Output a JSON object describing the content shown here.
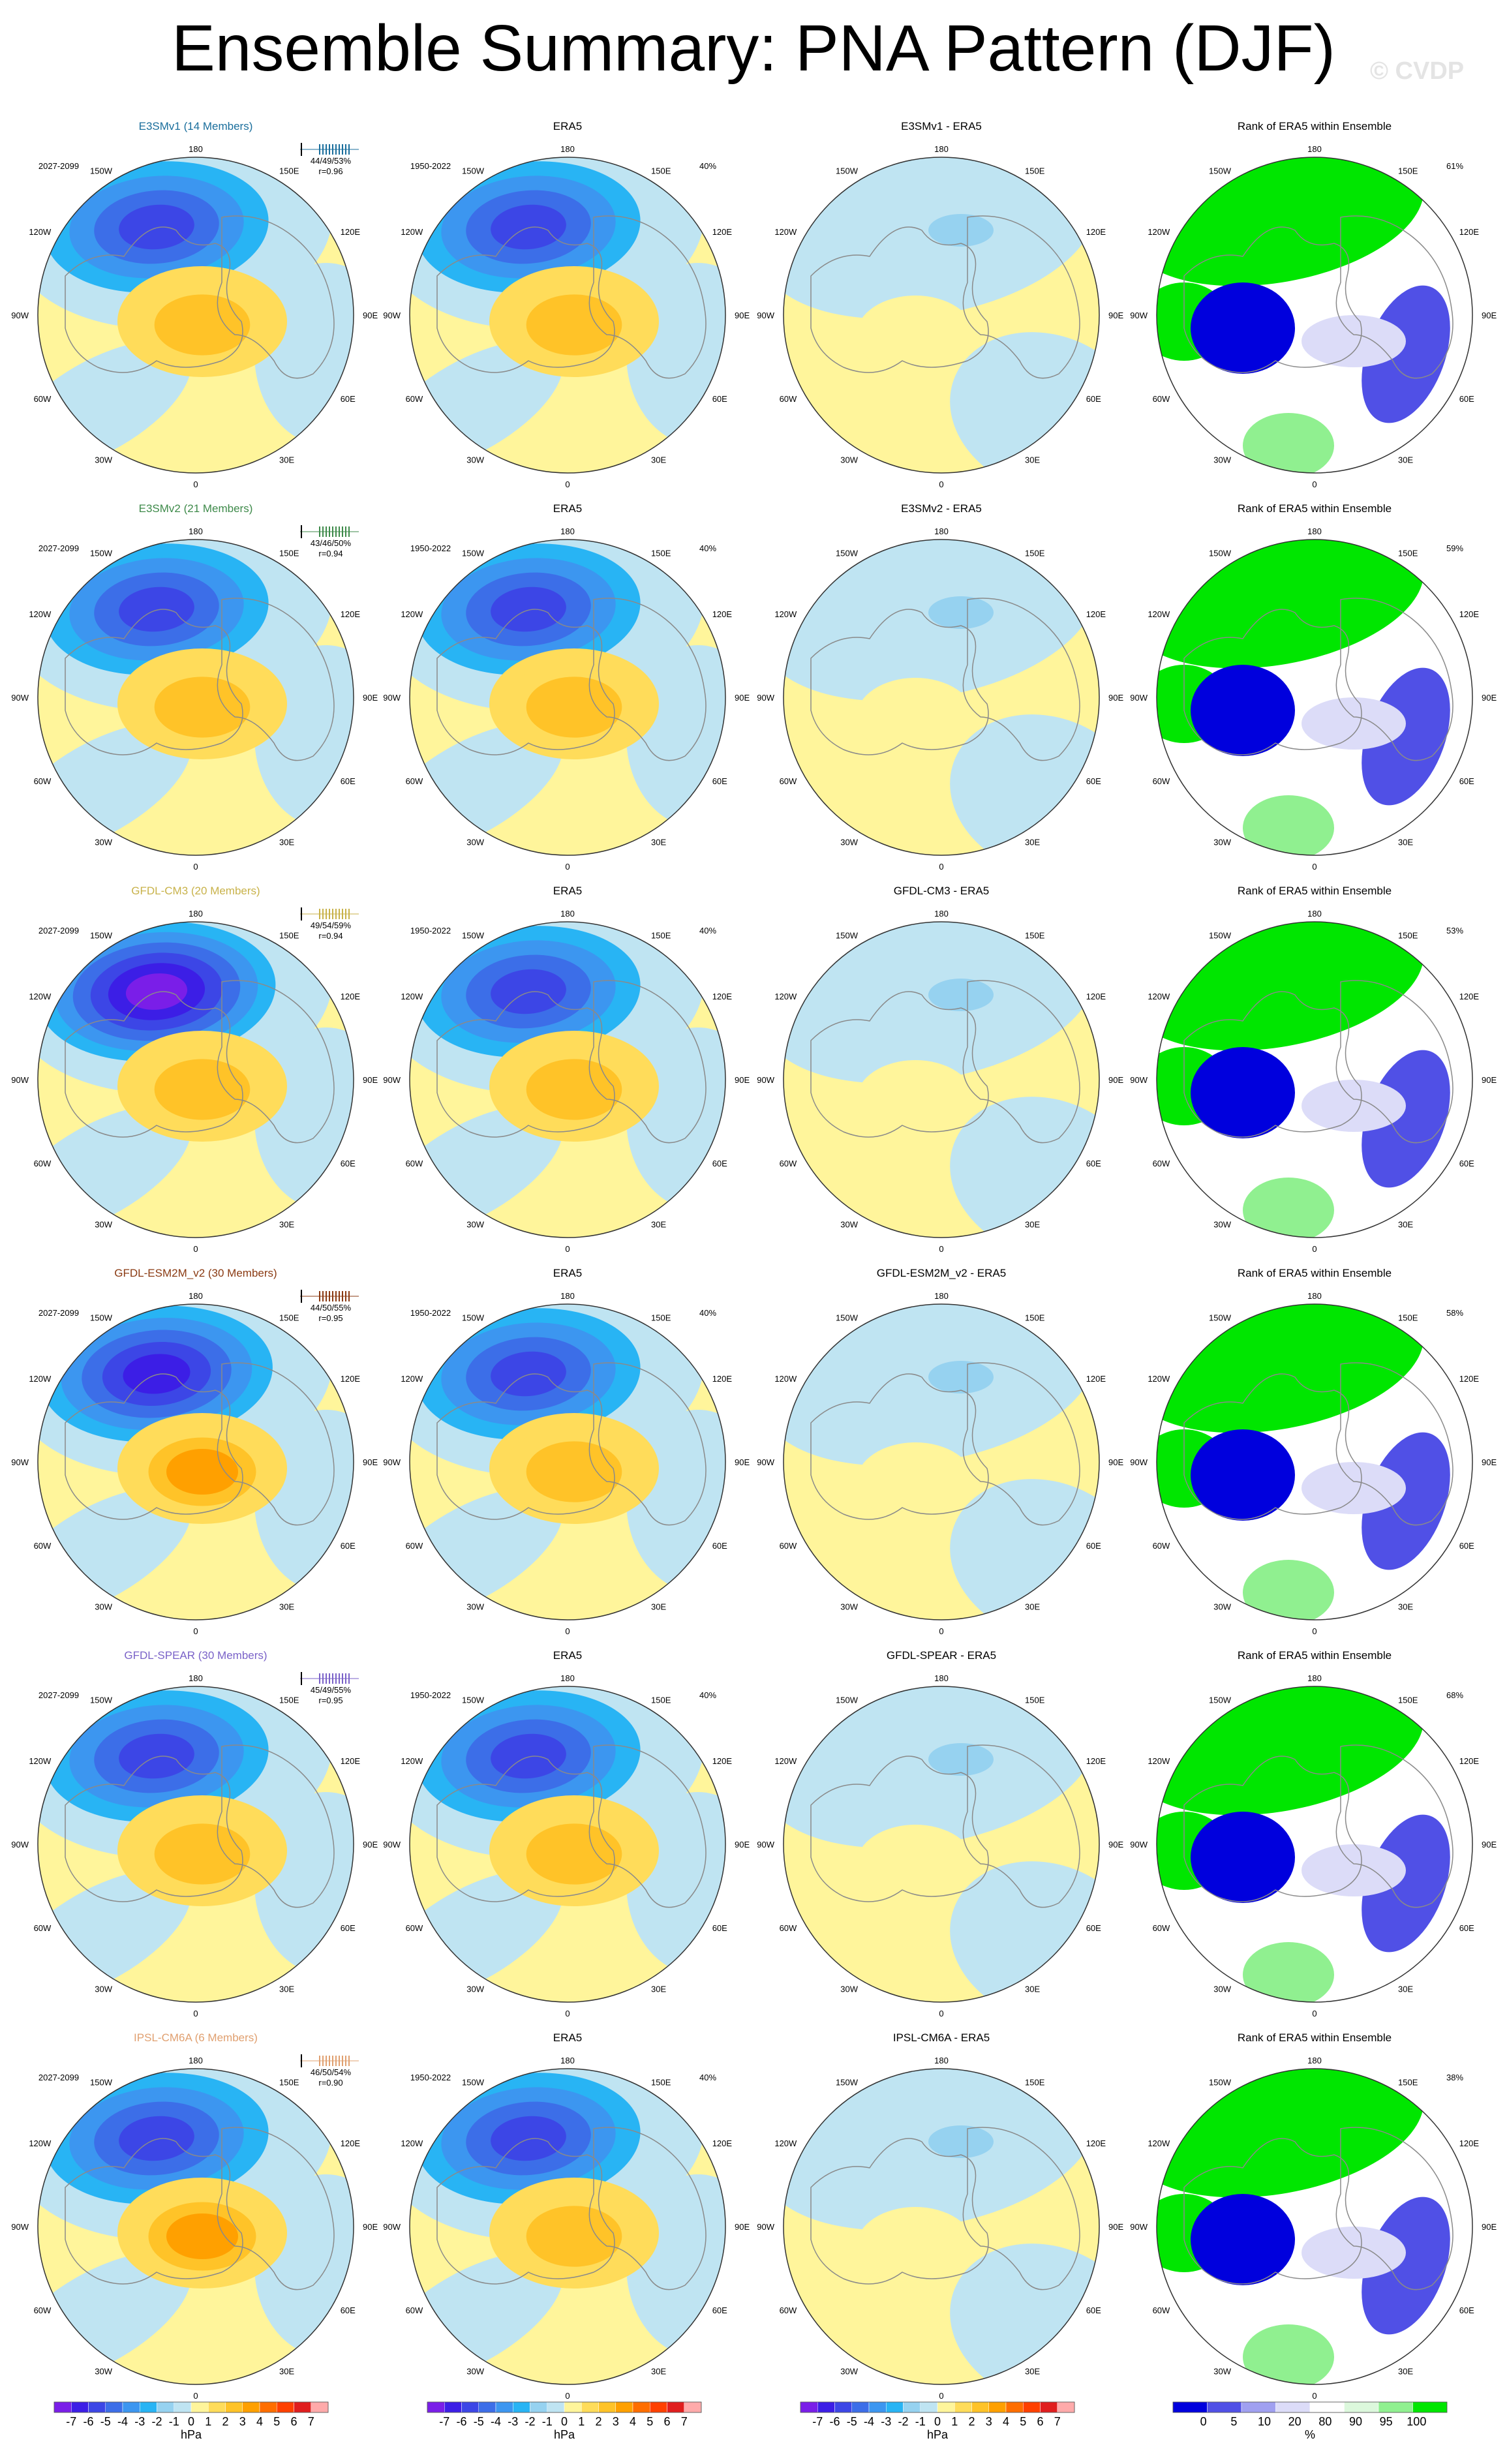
{
  "title": "Ensemble Summary: PNA Pattern (DJF)",
  "watermark": "© CVDP",
  "chart_data": {
    "type": "polar_map_panels",
    "rows": [
      {
        "model": "E3SMv1 (14 Members)",
        "model_color": "#1a6e9c",
        "period": "2027-2099",
        "ens_stats": "44/49/53%",
        "r": "r=0.96",
        "obs_title": "ERA5",
        "obs_period": "1950-2022",
        "obs_pct": "40%",
        "diff_title": "E3SMv1 - ERA5",
        "rank_title": "Rank of ERA5 within Ensemble",
        "rank_pct": "61%",
        "mean_low": -4.5,
        "mean_high": 2.5
      },
      {
        "model": "E3SMv2 (21 Members)",
        "model_color": "#3e8a4a",
        "period": "2027-2099",
        "ens_stats": "43/46/50%",
        "r": "r=0.94",
        "obs_title": "ERA5",
        "obs_period": "1950-2022",
        "obs_pct": "40%",
        "diff_title": "E3SMv2 - ERA5",
        "rank_title": "Rank of ERA5 within Ensemble",
        "rank_pct": "59%",
        "mean_low": -4.0,
        "mean_high": 2.0
      },
      {
        "model": "GFDL-CM3 (20 Members)",
        "model_color": "#c8b24a",
        "period": "2027-2099",
        "ens_stats": "49/54/59%",
        "r": "r=0.94",
        "obs_title": "ERA5",
        "obs_period": "1950-2022",
        "obs_pct": "40%",
        "diff_title": "GFDL-CM3 - ERA5",
        "rank_title": "Rank of ERA5 within Ensemble",
        "rank_pct": "53%",
        "mean_low": -6.0,
        "mean_high": 2.0
      },
      {
        "model": "GFDL-ESM2M_v2 (30 Members)",
        "model_color": "#8a3a12",
        "period": "2027-2099",
        "ens_stats": "44/50/55%",
        "r": "r=0.95",
        "obs_title": "ERA5",
        "obs_period": "1950-2022",
        "obs_pct": "40%",
        "diff_title": "GFDL-ESM2M_v2 - ERA5",
        "rank_title": "Rank of ERA5 within Ensemble",
        "rank_pct": "58%",
        "mean_low": -5.0,
        "mean_high": 3.0
      },
      {
        "model": "GFDL-SPEAR (30 Members)",
        "model_color": "#7a62c8",
        "period": "2027-2099",
        "ens_stats": "45/49/55%",
        "r": "r=0.95",
        "obs_title": "ERA5",
        "obs_period": "1950-2022",
        "obs_pct": "40%",
        "diff_title": "GFDL-SPEAR - ERA5",
        "rank_title": "Rank of ERA5 within Ensemble",
        "rank_pct": "68%",
        "mean_low": -4.0,
        "mean_high": 2.0
      },
      {
        "model": "IPSL-CM6A (6 Members)",
        "model_color": "#e0a070",
        "period": "2027-2099",
        "ens_stats": "46/50/54%",
        "r": "r=0.90",
        "obs_title": "ERA5",
        "obs_period": "1950-2022",
        "obs_pct": "40%",
        "diff_title": "IPSL-CM6A - ERA5",
        "rank_title": "Rank of ERA5 within Ensemble",
        "rank_pct": "38%",
        "mean_low": -4.5,
        "mean_high": 3.0
      }
    ],
    "lon_labels": {
      "top": "180",
      "bottom": "0",
      "left": [
        "150W",
        "120W",
        "90W",
        "60W",
        "30W"
      ],
      "right": [
        "150E",
        "120E",
        "90E",
        "60E",
        "30E"
      ]
    },
    "colorbars": [
      {
        "ticks": [
          "-7",
          "-6",
          "-5",
          "-4",
          "-3",
          "-2",
          "-1",
          "0",
          "1",
          "2",
          "3",
          "4",
          "5",
          "6",
          "7"
        ],
        "colors": [
          "#7a1ee8",
          "#3c1ee6",
          "#3c46e6",
          "#3c6ee8",
          "#3c96f0",
          "#28b4f4",
          "#96d2f0",
          "#bfe4f2",
          "#fff59b",
          "#ffdc5a",
          "#ffc328",
          "#ffa000",
          "#ff6e00",
          "#ff4000",
          "#e01e1e",
          "#ffaaaa"
        ],
        "units": "hPa"
      },
      {
        "ticks": [
          "-7",
          "-6",
          "-5",
          "-4",
          "-3",
          "-2",
          "-1",
          "0",
          "1",
          "2",
          "3",
          "4",
          "5",
          "6",
          "7"
        ],
        "colors": [
          "#7a1ee8",
          "#3c1ee6",
          "#3c46e6",
          "#3c6ee8",
          "#3c96f0",
          "#28b4f4",
          "#96d2f0",
          "#bfe4f2",
          "#fff59b",
          "#ffdc5a",
          "#ffc328",
          "#ffa000",
          "#ff6e00",
          "#ff4000",
          "#e01e1e",
          "#ffaaaa"
        ],
        "units": "hPa"
      },
      {
        "ticks": [
          "-7",
          "-6",
          "-5",
          "-4",
          "-3",
          "-2",
          "-1",
          "0",
          "1",
          "2",
          "3",
          "4",
          "5",
          "6",
          "7"
        ],
        "colors": [
          "#7a1ee8",
          "#3c1ee6",
          "#3c46e6",
          "#3c6ee8",
          "#3c96f0",
          "#28b4f4",
          "#96d2f0",
          "#bfe4f2",
          "#fff59b",
          "#ffdc5a",
          "#ffc328",
          "#ffa000",
          "#ff6e00",
          "#ff4000",
          "#e01e1e",
          "#ffaaaa"
        ],
        "units": "hPa"
      },
      {
        "ticks": [
          "0",
          "5",
          "10",
          "20",
          "80",
          "90",
          "95",
          "100"
        ],
        "colors": [
          "#0000dd",
          "#5050e6",
          "#a0a0f0",
          "#dcdcf8",
          "#ffffff",
          "#dcf8dc",
          "#90f090",
          "#00e600"
        ],
        "units": "%"
      }
    ]
  }
}
